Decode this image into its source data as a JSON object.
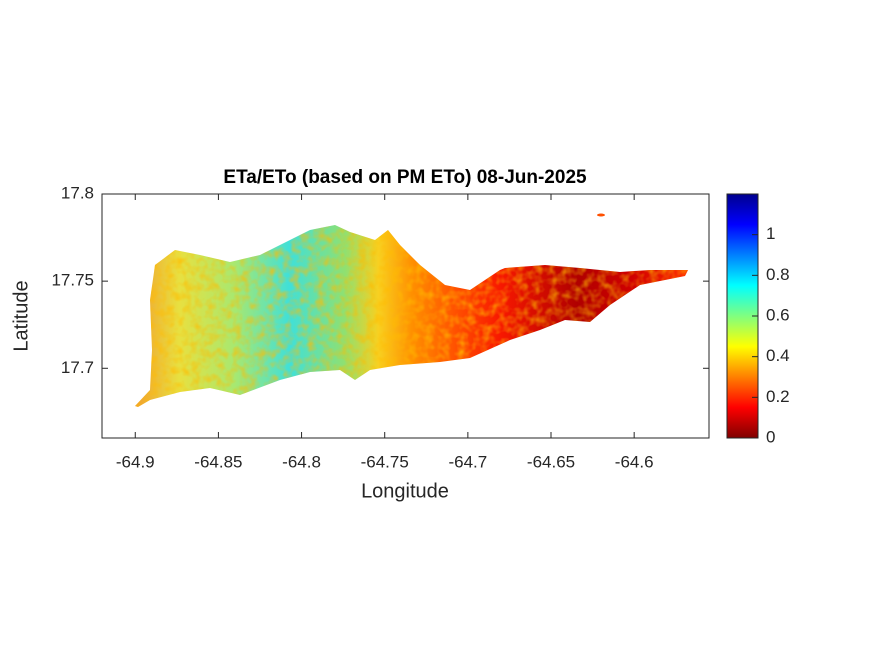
{
  "chart_data": {
    "type": "map",
    "title": "ETa/ETo (based on PM ETo) 08-Jun-2025",
    "x_label": "Longitude",
    "y_label": "Latitude",
    "xlim": [
      -64.92,
      -64.555
    ],
    "xticks": [
      -64.9,
      -64.85,
      -64.8,
      -64.75,
      -64.7,
      -64.65,
      -64.6
    ],
    "ylim": [
      17.66,
      17.8
    ],
    "yticks": [
      17.7,
      17.75,
      17.8
    ],
    "clim": [
      0,
      1.2
    ],
    "cticks": [
      0,
      0.2,
      0.4,
      0.6,
      0.8,
      1
    ],
    "colormap": "reversed jet"
  }
}
